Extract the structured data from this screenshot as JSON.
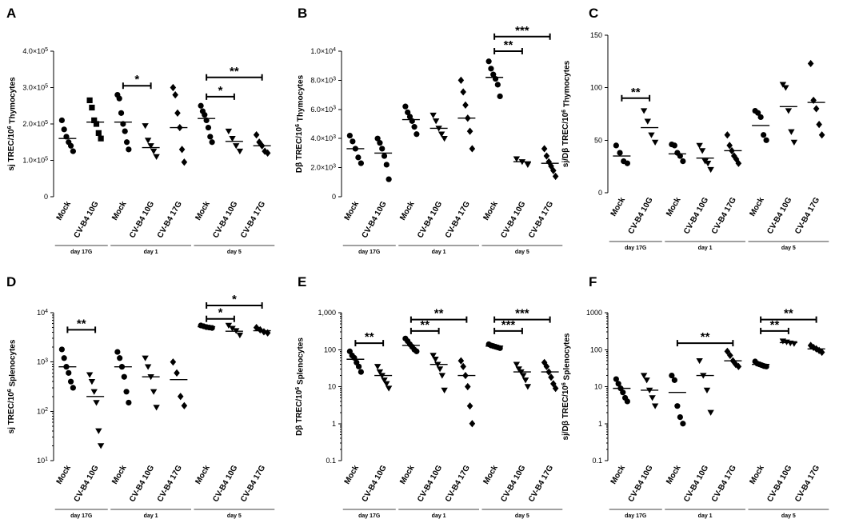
{
  "chart_data": [
    {
      "id": "A",
      "type": "scatter",
      "scale": "linear",
      "ylabel": "sj TREC/10^6 Thymocytes",
      "ylim": [
        0,
        400000
      ],
      "yticks": [
        {
          "v": 0,
          "t": "0"
        },
        {
          "v": 100000,
          "t": "1.0×10^5"
        },
        {
          "v": 200000,
          "t": "2.0×10^5"
        },
        {
          "v": 300000,
          "t": "3.0×10^5"
        },
        {
          "v": 400000,
          "t": "4.0×10^5"
        }
      ],
      "categories": [
        "Mock",
        "CV-B4 10G",
        "Mock",
        "CV-B4 10G",
        "CV-B4 17G",
        "Mock",
        "CV-B4 10G",
        "CV-B4 17G"
      ],
      "markers": [
        "circle",
        "square",
        "circle",
        "triangle",
        "diamond",
        "circle",
        "triangle",
        "diamond"
      ],
      "groups": [
        {
          "label": "day 17G",
          "from": 0,
          "to": 1
        },
        {
          "label": "day 1",
          "from": 2,
          "to": 4
        },
        {
          "label": "day 5",
          "from": 5,
          "to": 7
        }
      ],
      "series": [
        {
          "name": "Mock",
          "values": [
            210000,
            185000,
            165000,
            150000,
            140000,
            125000
          ],
          "mean": 160000
        },
        {
          "name": "CV-B4 10G",
          "values": [
            265000,
            245000,
            210000,
            200000,
            175000,
            160000
          ],
          "mean": 205000
        },
        {
          "name": "Mock",
          "values": [
            280000,
            270000,
            230000,
            200000,
            180000,
            150000,
            130000
          ],
          "mean": 205000
        },
        {
          "name": "CV-B4 10G",
          "values": [
            195000,
            155000,
            140000,
            125000,
            110000
          ],
          "mean": 135000
        },
        {
          "name": "CV-B4 17G",
          "values": [
            300000,
            280000,
            230000,
            190000,
            130000,
            95000
          ],
          "mean": 190000
        },
        {
          "name": "Mock",
          "values": [
            250000,
            235000,
            225000,
            210000,
            190000,
            165000,
            150000
          ],
          "mean": 215000
        },
        {
          "name": "CV-B4 10G",
          "values": [
            180000,
            160000,
            140000,
            125000
          ],
          "mean": 152000
        },
        {
          "name": "CV-B4 17G",
          "values": [
            170000,
            150000,
            140000,
            125000,
            120000
          ],
          "mean": 140000
        }
      ],
      "significance": [
        {
          "from": 2,
          "to": 3,
          "label": "*",
          "y": 305000
        },
        {
          "from": 5,
          "to": 6,
          "label": "*",
          "y": 275000
        },
        {
          "from": 5,
          "to": 7,
          "label": "**",
          "y": 328000
        }
      ]
    },
    {
      "id": "B",
      "type": "scatter",
      "scale": "linear",
      "ylabel": "Dβ TREC/10^6 Thymocytes",
      "ylim": [
        0,
        10000
      ],
      "yticks": [
        {
          "v": 0,
          "t": "0"
        },
        {
          "v": 2000,
          "t": "2.0×10^3"
        },
        {
          "v": 4000,
          "t": "4.0×10^3"
        },
        {
          "v": 6000,
          "t": "6.0×10^3"
        },
        {
          "v": 8000,
          "t": "8.0×10^3"
        },
        {
          "v": 10000,
          "t": "1.0×10^4"
        }
      ],
      "categories": [
        "Mock",
        "CV-B4 10G",
        "Mock",
        "CV-B4 10G",
        "CV-B4 17G",
        "Mock",
        "CV-B4 10G",
        "CV-B4 17G"
      ],
      "markers": [
        "circle",
        "circle",
        "circle",
        "triangle",
        "diamond",
        "circle",
        "triangle",
        "diamond"
      ],
      "groups": [
        {
          "label": "day 17G",
          "from": 0,
          "to": 1
        },
        {
          "label": "day 1",
          "from": 2,
          "to": 4
        },
        {
          "label": "day 5",
          "from": 5,
          "to": 7
        }
      ],
      "series": [
        {
          "name": "Mock",
          "values": [
            4200,
            3800,
            3300,
            2700,
            2300
          ],
          "mean": 3300
        },
        {
          "name": "CV-B4 10G",
          "values": [
            4000,
            3700,
            3300,
            2800,
            2200,
            1200
          ],
          "mean": 3000
        },
        {
          "name": "Mock",
          "values": [
            6200,
            5800,
            5500,
            5200,
            4800,
            4300
          ],
          "mean": 5300
        },
        {
          "name": "CV-B4 10G",
          "values": [
            5600,
            5200,
            4700,
            4300,
            4000
          ],
          "mean": 4700
        },
        {
          "name": "CV-B4 17G",
          "values": [
            8000,
            7200,
            6300,
            5400,
            4500,
            3300
          ],
          "mean": 5400
        },
        {
          "name": "Mock",
          "values": [
            9300,
            8800,
            8400,
            8100,
            7700,
            6900
          ],
          "mean": 8200
        },
        {
          "name": "CV-B4 10G",
          "values": [
            2600,
            2400,
            2200
          ],
          "mean": 2400
        },
        {
          "name": "CV-B4 17G",
          "values": [
            3300,
            2800,
            2400,
            2100,
            1800,
            1400
          ],
          "mean": 2300
        }
      ],
      "significance": [
        {
          "from": 5,
          "to": 6,
          "label": "**",
          "y": 10000
        },
        {
          "from": 5,
          "to": 7,
          "label": "***",
          "y": 11000
        }
      ]
    },
    {
      "id": "C",
      "type": "scatter",
      "scale": "linear",
      "ylabel": "sj/Dβ TREC/10^6 Thymocytes",
      "ylim": [
        0,
        150
      ],
      "yticks": [
        {
          "v": 0,
          "t": "0"
        },
        {
          "v": 50,
          "t": "50"
        },
        {
          "v": 100,
          "t": "100"
        },
        {
          "v": 150,
          "t": "150"
        }
      ],
      "categories": [
        "Mock",
        "CV-B4 10G",
        "Mock",
        "CV-B4 10G",
        "CV-B4 17G",
        "Mock",
        "CV-B4 10G",
        "CV-B4 17G"
      ],
      "markers": [
        "circle",
        "triangle",
        "circle",
        "triangle",
        "diamond",
        "circle",
        "triangle",
        "diamond"
      ],
      "groups": [
        {
          "label": "day 17G",
          "from": 0,
          "to": 1
        },
        {
          "label": "day 1",
          "from": 2,
          "to": 4
        },
        {
          "label": "day 5",
          "from": 5,
          "to": 7
        }
      ],
      "series": [
        {
          "name": "Mock",
          "values": [
            45,
            38,
            30,
            28
          ],
          "mean": 35
        },
        {
          "name": "CV-B4 10G",
          "values": [
            78,
            68,
            55,
            48
          ],
          "mean": 62
        },
        {
          "name": "Mock",
          "values": [
            46,
            45,
            38,
            35,
            30
          ],
          "mean": 37
        },
        {
          "name": "CV-B4 10G",
          "values": [
            45,
            40,
            30,
            28,
            22
          ],
          "mean": 33
        },
        {
          "name": "CV-B4 17G",
          "values": [
            55,
            45,
            40,
            35,
            32,
            28
          ],
          "mean": 40
        },
        {
          "name": "Mock",
          "values": [
            78,
            76,
            72,
            55,
            50
          ],
          "mean": 64
        },
        {
          "name": "CV-B4 10G",
          "values": [
            103,
            100,
            78,
            58,
            48
          ],
          "mean": 82
        },
        {
          "name": "CV-B4 17G",
          "values": [
            123,
            88,
            80,
            65,
            55
          ],
          "mean": 86
        }
      ],
      "significance": [
        {
          "from": 0,
          "to": 1,
          "label": "**",
          "y": 90
        }
      ]
    },
    {
      "id": "D",
      "type": "scatter",
      "scale": "log",
      "ylabel": "sj TREC/10^6 Splenocytes",
      "ylim": [
        10,
        10000
      ],
      "yticks": [
        {
          "v": 10,
          "t": "10^1"
        },
        {
          "v": 100,
          "t": "10^2"
        },
        {
          "v": 1000,
          "t": "10^3"
        },
        {
          "v": 10000,
          "t": "10^4"
        }
      ],
      "categories": [
        "Mock",
        "CV-B4 10G",
        "Mock",
        "CV-B4 10G",
        "CV-B4 17G",
        "Mock",
        "CV-B4 10G",
        "CV-B4 17G"
      ],
      "markers": [
        "circle",
        "triangle",
        "circle",
        "triangle",
        "diamond",
        "circle",
        "triangle",
        "diamond"
      ],
      "groups": [
        {
          "label": "day 17G",
          "from": 0,
          "to": 1
        },
        {
          "label": "day 1",
          "from": 2,
          "to": 4
        },
        {
          "label": "day 5",
          "from": 5,
          "to": 7
        }
      ],
      "series": [
        {
          "name": "Mock",
          "values": [
            1800,
            1200,
            800,
            600,
            400,
            300
          ],
          "mean": 800
        },
        {
          "name": "CV-B4 10G",
          "values": [
            550,
            400,
            250,
            150,
            40,
            20
          ],
          "mean": 200
        },
        {
          "name": "Mock",
          "values": [
            1600,
            1200,
            800,
            500,
            250,
            150
          ],
          "mean": 800
        },
        {
          "name": "CV-B4 10G",
          "values": [
            1200,
            800,
            500,
            250,
            120
          ],
          "mean": 500
        },
        {
          "name": "CV-B4 17G",
          "values": [
            1000,
            600,
            200,
            130
          ],
          "mean": 440
        },
        {
          "name": "Mock",
          "values": [
            5500,
            5300,
            5100,
            5000,
            4900
          ],
          "mean": 5200
        },
        {
          "name": "CV-B4 10G",
          "values": [
            5500,
            4800,
            4300,
            3500
          ],
          "mean": 4200
        },
        {
          "name": "CV-B4 17G",
          "values": [
            5000,
            4500,
            4100,
            3900
          ],
          "mean": 4300
        }
      ],
      "significance": [
        {
          "from": 0,
          "to": 1,
          "label": "**",
          "y": 4500
        },
        {
          "from": 5,
          "to": 6,
          "label": "*",
          "y": 7500
        },
        {
          "from": 5,
          "to": 7,
          "label": "*",
          "y": 14000
        }
      ]
    },
    {
      "id": "E",
      "type": "scatter",
      "scale": "log",
      "ylabel": "Dβ TREC/10^6 Splenocytes",
      "ylim": [
        0.1,
        1000
      ],
      "yticks": [
        {
          "v": 0.1,
          "t": "0.1"
        },
        {
          "v": 1,
          "t": "1"
        },
        {
          "v": 10,
          "t": "10"
        },
        {
          "v": 100,
          "t": "100"
        },
        {
          "v": 1000,
          "t": "1,000"
        }
      ],
      "categories": [
        "Mock",
        "CV-B4 10G",
        "Mock",
        "CV-B4 10G",
        "CV-B4 17G",
        "Mock",
        "CV-B4 10G",
        "CV-B4 17G"
      ],
      "markers": [
        "circle",
        "triangle",
        "circle",
        "triangle",
        "diamond",
        "circle",
        "triangle",
        "diamond"
      ],
      "groups": [
        {
          "label": "day 17G",
          "from": 0,
          "to": 1
        },
        {
          "label": "day 1",
          "from": 2,
          "to": 4
        },
        {
          "label": "day 5",
          "from": 5,
          "to": 7
        }
      ],
      "series": [
        {
          "name": "Mock",
          "values": [
            90,
            70,
            60,
            45,
            35,
            25
          ],
          "mean": 55
        },
        {
          "name": "CV-B4 10G",
          "values": [
            35,
            25,
            20,
            15,
            12,
            9
          ],
          "mean": 20
        },
        {
          "name": "Mock",
          "values": [
            200,
            170,
            140,
            120,
            100,
            90
          ],
          "mean": 130
        },
        {
          "name": "CV-B4 10G",
          "values": [
            70,
            55,
            40,
            30,
            20,
            8
          ],
          "mean": 40
        },
        {
          "name": "CV-B4 17G",
          "values": [
            50,
            35,
            20,
            10,
            3,
            1
          ],
          "mean": 20
        },
        {
          "name": "Mock",
          "values": [
            140,
            130,
            125,
            120,
            115,
            110
          ],
          "mean": 125
        },
        {
          "name": "CV-B4 10G",
          "values": [
            40,
            30,
            25,
            20,
            15,
            10
          ],
          "mean": 25
        },
        {
          "name": "CV-B4 17G",
          "values": [
            45,
            35,
            25,
            18,
            12,
            9
          ],
          "mean": 25
        }
      ],
      "significance": [
        {
          "from": 0,
          "to": 1,
          "label": "**",
          "y": 150
        },
        {
          "from": 2,
          "to": 3,
          "label": "**",
          "y": 320
        },
        {
          "from": 2,
          "to": 4,
          "label": "**",
          "y": 650
        },
        {
          "from": 5,
          "to": 6,
          "label": "***",
          "y": 320
        },
        {
          "from": 5,
          "to": 7,
          "label": "***",
          "y": 650
        }
      ]
    },
    {
      "id": "F",
      "type": "scatter",
      "scale": "log",
      "ylabel": "sj/Dβ TREC/10^6 Splenocytes",
      "ylim": [
        0.1,
        1000
      ],
      "yticks": [
        {
          "v": 0.1,
          "t": "0.1"
        },
        {
          "v": 1,
          "t": "1"
        },
        {
          "v": 10,
          "t": "10"
        },
        {
          "v": 100,
          "t": "100"
        },
        {
          "v": 1000,
          "t": "1000"
        }
      ],
      "categories": [
        "Mock",
        "CV-B4 10G",
        "Mock",
        "CV-B4 10G",
        "CV-B4 17G",
        "Mock",
        "CV-B4 10G",
        "CV-B4 17G"
      ],
      "markers": [
        "circle",
        "triangle",
        "circle",
        "triangle",
        "diamond",
        "circle",
        "triangle",
        "diamond"
      ],
      "groups": [
        {
          "label": "day 17G",
          "from": 0,
          "to": 1
        },
        {
          "label": "day 1",
          "from": 2,
          "to": 4
        },
        {
          "label": "day 5",
          "from": 5,
          "to": 7
        }
      ],
      "series": [
        {
          "name": "Mock",
          "values": [
            16,
            12,
            9,
            7,
            5,
            4
          ],
          "mean": 9
        },
        {
          "name": "CV-B4 10G",
          "values": [
            20,
            15,
            8,
            5,
            3
          ],
          "mean": 8
        },
        {
          "name": "Mock",
          "values": [
            20,
            15,
            3,
            1.5,
            1
          ],
          "mean": 7
        },
        {
          "name": "CV-B4 10G",
          "values": [
            50,
            20,
            8,
            2
          ],
          "mean": 20
        },
        {
          "name": "CV-B4 17G",
          "values": [
            90,
            70,
            50,
            40,
            35
          ],
          "mean": 50
        },
        {
          "name": "Mock",
          "values": [
            48,
            42,
            40,
            38,
            36,
            35
          ],
          "mean": 40
        },
        {
          "name": "CV-B4 10G",
          "values": [
            170,
            160,
            150,
            145
          ],
          "mean": 155
        },
        {
          "name": "CV-B4 17G",
          "values": [
            130,
            115,
            105,
            95,
            85
          ],
          "mean": 105
        }
      ],
      "significance": [
        {
          "from": 2,
          "to": 4,
          "label": "**",
          "y": 150
        },
        {
          "from": 5,
          "to": 6,
          "label": "**",
          "y": 320
        },
        {
          "from": 5,
          "to": 7,
          "label": "**",
          "y": 650
        }
      ]
    }
  ]
}
